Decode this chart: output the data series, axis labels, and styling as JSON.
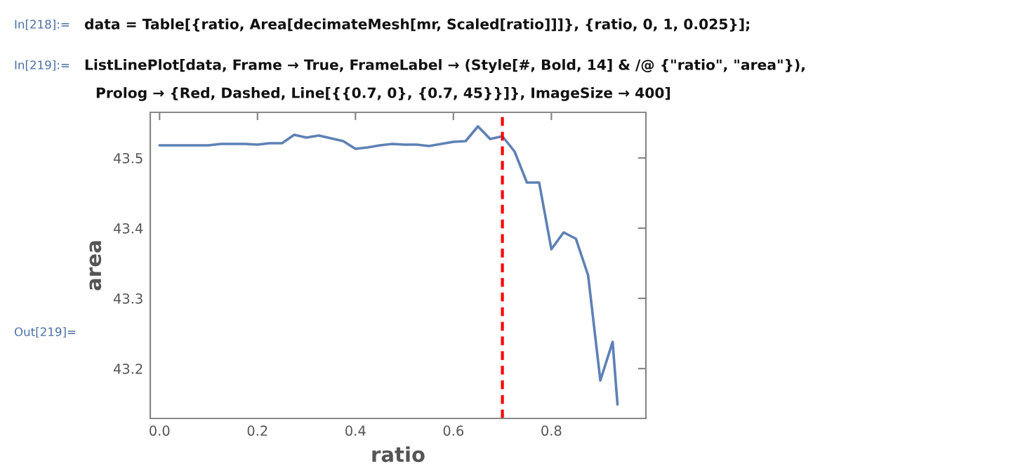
{
  "chart_data": {
    "type": "line",
    "xlabel": "ratio",
    "ylabel": "area",
    "annotations": [
      "In[218]:=",
      "data = Table[{ratio, Area[decimateMesh[mr, Scaled[ratio]]]}, {ratio, 0, 1, 0.025}];",
      "In[219]:=",
      "ListLinePlot[data, Frame → True, FrameLabel → (Style[#, Bold, 14] & /@ {\"ratio\", \"area\"}),",
      "Prolog → {Red, Dashed, Line[{{0.7, 0}, {0.7, 45}}]}, ImageSize → 400]",
      "Out[219]="
    ],
    "x": [
      0,
      0.025,
      0.05,
      0.075,
      0.1,
      0.125,
      0.15,
      0.175,
      0.2,
      0.225,
      0.25,
      0.275,
      0.3,
      0.325,
      0.35,
      0.375,
      0.4,
      0.425,
      0.45,
      0.475,
      0.5,
      0.525,
      0.55,
      0.575,
      0.6,
      0.625,
      0.65,
      0.675,
      0.7,
      0.725,
      0.75,
      0.775,
      0.8,
      0.825,
      0.85,
      0.875,
      0.9,
      0.925,
      0.935
    ],
    "series": [
      {
        "color": "#5e81b5",
        "values": [
          43.518,
          43.518,
          43.518,
          43.518,
          43.518,
          43.52,
          43.52,
          43.52,
          43.519,
          43.521,
          43.521,
          43.533,
          43.529,
          43.532,
          43.528,
          43.524,
          43.513,
          43.515,
          43.518,
          43.52,
          43.519,
          43.519,
          43.517,
          43.52,
          43.523,
          43.524,
          43.545,
          43.527,
          43.531,
          43.509,
          43.465,
          43.465,
          43.37,
          43.394,
          43.385,
          43.333,
          43.183,
          43.238,
          43.149
        ]
      }
    ],
    "xlim": [
      -0.019,
      0.993
    ],
    "ylim": [
      43.129,
      43.565
    ],
    "xticks": [
      {
        "value": 0,
        "label": "0.0"
      },
      0.2,
      0.4,
      0.6,
      0.8
    ],
    "yticks": [
      43.2,
      43.3,
      43.4,
      43.5
    ],
    "ref_lines": [
      {
        "axis": "x",
        "value": 0.7,
        "color": "#ff0000",
        "line_style": "dashed"
      }
    ],
    "grid": false,
    "legend": false
  }
}
